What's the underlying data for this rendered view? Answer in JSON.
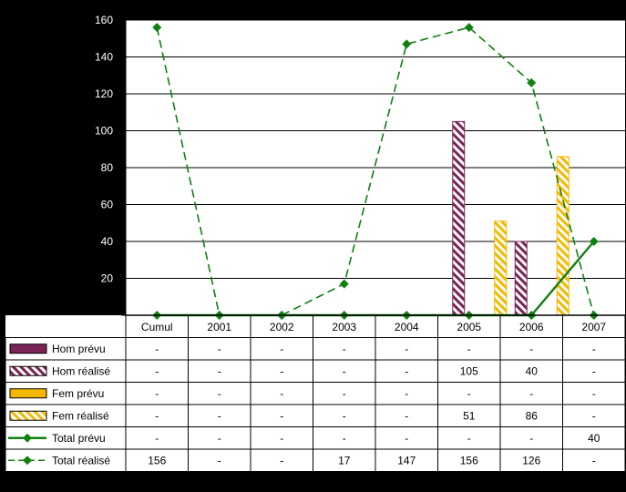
{
  "chart_data": {
    "type": "bar",
    "categories": [
      "Cumul",
      "2001",
      "2002",
      "2003",
      "2004",
      "2005",
      "2006",
      "2007"
    ],
    "y_ticks": [
      "-",
      "20",
      "40",
      "60",
      "80",
      "100",
      "120",
      "140",
      "160"
    ],
    "ylim": [
      0,
      160
    ],
    "grid": true,
    "legend_placement": "data-table-left",
    "series": [
      {
        "name": "Hom prévu",
        "kind": "bar",
        "values": [
          null,
          null,
          null,
          null,
          null,
          null,
          null,
          null
        ],
        "labels": [
          "-",
          "-",
          "-",
          "-",
          "-",
          "-",
          "-",
          "-"
        ],
        "color": "#7B2458",
        "pattern": "solid"
      },
      {
        "name": "Hom réalisé",
        "kind": "bar",
        "values": [
          null,
          null,
          null,
          null,
          null,
          105,
          40,
          null
        ],
        "labels": [
          "-",
          "-",
          "-",
          "-",
          "-",
          "105",
          "40",
          "-"
        ],
        "color": "#7B2458",
        "pattern": "hatch"
      },
      {
        "name": "Fem prévu",
        "kind": "bar",
        "values": [
          null,
          null,
          null,
          null,
          null,
          null,
          null,
          null
        ],
        "labels": [
          "-",
          "-",
          "-",
          "-",
          "-",
          "-",
          "-",
          "-"
        ],
        "color": "#F5B800",
        "pattern": "solid"
      },
      {
        "name": "Fem réalisé",
        "kind": "bar",
        "values": [
          null,
          null,
          null,
          null,
          null,
          51,
          86,
          null
        ],
        "labels": [
          "-",
          "-",
          "-",
          "-",
          "-",
          "51",
          "86",
          "-"
        ],
        "color": "#F5B800",
        "pattern": "hatch"
      },
      {
        "name": "Total prévu",
        "kind": "line",
        "values": [
          0,
          0,
          0,
          0,
          0,
          0,
          0,
          40
        ],
        "labels": [
          "-",
          "-",
          "-",
          "-",
          "-",
          "-",
          "-",
          "40"
        ],
        "color": "#108010",
        "dash": "solid"
      },
      {
        "name": "Total réalisé",
        "kind": "line",
        "values": [
          156,
          0,
          0,
          17,
          147,
          156,
          126,
          0
        ],
        "labels": [
          "156",
          "-",
          "-",
          "17",
          "147",
          "156",
          "126",
          "-"
        ],
        "color": "#108010",
        "dash": "dashed"
      }
    ]
  }
}
